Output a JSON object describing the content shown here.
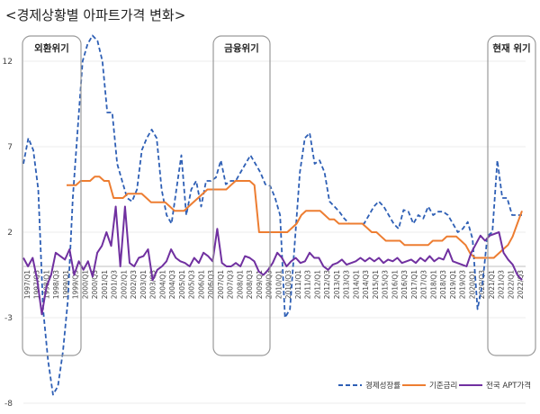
{
  "chart_data": {
    "type": "line",
    "title": "<경제상황별 아파트가격 변화>",
    "ylim": [
      -8,
      14
    ],
    "yticks": [
      12,
      7,
      2,
      -3,
      -8
    ],
    "xlabels": [
      "1997/Q1",
      "1997/Q3",
      "1998/Q1",
      "1998/Q3",
      "1999/Q1",
      "1999/Q3",
      "2000/Q1",
      "2000/Q3",
      "2001/Q1",
      "2001/Q3",
      "2002/Q1",
      "2002/Q3",
      "2003/Q1",
      "2003/Q3",
      "2004/Q1",
      "2004/Q3",
      "2005/Q1",
      "2005/Q3",
      "2006/Q1",
      "2006/Q3",
      "2007/Q1",
      "2007/Q3",
      "2008/Q1",
      "2008/Q3",
      "2009/Q1",
      "2009/Q3",
      "2010/Q1",
      "2010/Q3",
      "2011/Q1",
      "2011/Q3",
      "2012/Q1",
      "2012/Q3",
      "2013/Q1",
      "2013/Q3",
      "2014/Q1",
      "2014/Q3",
      "2015/Q1",
      "2015/Q3",
      "2016/Q1",
      "2016/Q3",
      "2017/Q1",
      "2017/Q3",
      "2018/Q1",
      "2018/Q3",
      "2019/Q1",
      "2019/Q3",
      "2020/Q1",
      "2020/Q3",
      "2021/Q1",
      "2021/Q3",
      "2022/Q1",
      "2022/Q3"
    ],
    "series": [
      {
        "name": "경제성장률",
        "color": "#2e5fb5",
        "style": "dashed",
        "values": [
          6.0,
          7.5,
          6.8,
          4.5,
          -2.5,
          -5.5,
          -7.5,
          -7.0,
          -5.0,
          -2.0,
          4.0,
          8.0,
          12.0,
          13.0,
          13.5,
          13.2,
          12.0,
          9.0,
          9.0,
          6.0,
          5.0,
          4.0,
          3.8,
          4.5,
          6.8,
          7.5,
          8.0,
          7.5,
          4.5,
          3.0,
          2.5,
          4.5,
          6.5,
          3.0,
          4.5,
          5.0,
          3.5,
          5.0,
          5.0,
          5.2,
          6.2,
          4.8,
          5.0,
          5.0,
          5.5,
          6.0,
          6.5,
          6.0,
          5.5,
          4.8,
          4.7,
          4.0,
          3.0,
          -3.0,
          -2.5,
          1.5,
          5.5,
          7.5,
          7.8,
          6.0,
          6.2,
          5.5,
          3.8,
          3.5,
          3.2,
          2.8,
          2.5,
          2.5,
          2.5,
          2.5,
          3.0,
          3.5,
          3.8,
          3.5,
          3.0,
          2.5,
          2.2,
          3.3,
          3.2,
          2.5,
          3.0,
          2.8,
          3.5,
          3.0,
          3.2,
          3.2,
          3.0,
          2.5,
          2.0,
          2.2,
          2.6,
          1.6,
          -2.5,
          -1.0,
          1.8,
          2.0,
          6.2,
          4.0,
          4.0,
          3.0,
          3.0,
          3.0
        ]
      },
      {
        "name": "기준금리",
        "color": "#ed7d31",
        "style": "solid",
        "start_index": 12,
        "values": [
          4.75,
          4.75,
          4.75,
          5.0,
          5.0,
          5.0,
          5.25,
          5.25,
          5.0,
          5.0,
          4.0,
          4.0,
          4.0,
          4.25,
          4.25,
          4.25,
          4.25,
          4.0,
          3.75,
          3.75,
          3.75,
          3.75,
          3.5,
          3.25,
          3.25,
          3.25,
          3.5,
          3.75,
          4.0,
          4.25,
          4.5,
          4.5,
          4.5,
          4.5,
          4.5,
          4.75,
          5.0,
          5.0,
          5.0,
          5.0,
          4.75,
          2.0,
          2.0,
          2.0,
          2.0,
          2.0,
          2.0,
          2.0,
          2.25,
          2.5,
          3.0,
          3.25,
          3.25,
          3.25,
          3.25,
          3.0,
          2.75,
          2.75,
          2.5,
          2.5,
          2.5,
          2.5,
          2.5,
          2.5,
          2.25,
          2.0,
          2.0,
          1.75,
          1.5,
          1.5,
          1.5,
          1.5,
          1.25,
          1.25,
          1.25,
          1.25,
          1.25,
          1.25,
          1.5,
          1.5,
          1.5,
          1.75,
          1.75,
          1.75,
          1.5,
          1.25,
          0.75,
          0.5,
          0.5,
          0.5,
          0.5,
          0.5,
          0.75,
          1.0,
          1.25,
          1.75,
          2.5,
          3.25
        ]
      },
      {
        "name": "전국 APT가격",
        "color": "#7030a0",
        "style": "solid",
        "values": [
          0.5,
          0.0,
          0.5,
          -0.8,
          -2.8,
          -1.2,
          -0.5,
          0.8,
          0.6,
          0.4,
          1.0,
          -0.5,
          0.3,
          -0.2,
          0.3,
          -0.6,
          0.8,
          1.2,
          2.0,
          1.2,
          3.5,
          0.0,
          3.5,
          0.2,
          0.0,
          0.5,
          0.6,
          1.0,
          -0.8,
          -0.2,
          0.0,
          0.3,
          1.0,
          0.5,
          0.3,
          0.2,
          0.0,
          0.5,
          0.2,
          0.8,
          0.6,
          0.3,
          2.2,
          0.2,
          0.0,
          0.0,
          0.2,
          0.0,
          0.6,
          0.5,
          0.3,
          -0.3,
          -0.5,
          -0.2,
          0.2,
          0.8,
          0.5,
          0.0,
          0.3,
          0.5,
          0.2,
          0.3,
          0.8,
          0.5,
          0.5,
          0.0,
          -0.2,
          0.1,
          0.2,
          0.4,
          0.1,
          0.2,
          0.3,
          0.5,
          0.3,
          0.5,
          0.3,
          0.5,
          0.2,
          0.4,
          0.3,
          0.5,
          0.2,
          0.3,
          0.4,
          0.2,
          0.5,
          0.3,
          0.6,
          0.3,
          0.5,
          0.4,
          1.0,
          0.3,
          0.2,
          0.1,
          0.0,
          0.8,
          1.3,
          1.8,
          1.5,
          1.8,
          1.9,
          2.0,
          0.8,
          0.4,
          0.1,
          -0.5,
          -0.8
        ]
      }
    ],
    "crisis_labels": [
      "외환위기",
      "금융위기",
      "현재 위기"
    ],
    "legend_placement": "bottom-right"
  }
}
